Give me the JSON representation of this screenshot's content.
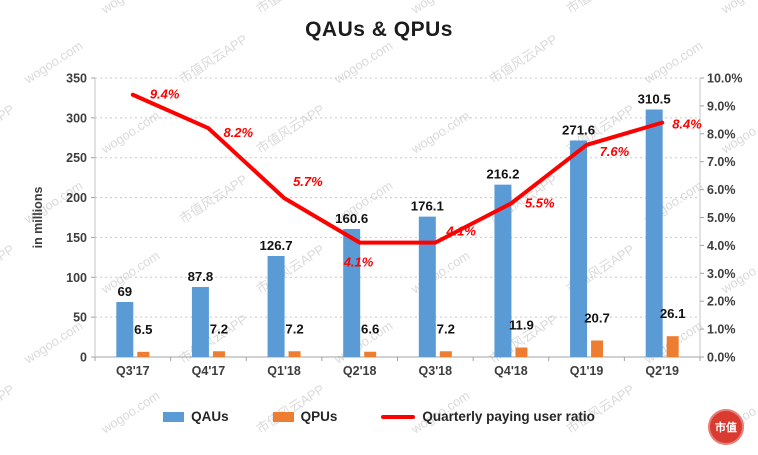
{
  "watermark": {
    "texts": [
      "市值风云APP",
      "wogoo.com"
    ]
  },
  "stamp": {
    "text": "市值"
  },
  "chart_data": {
    "type": "combo",
    "title": "QAUs & QPUs",
    "categories": [
      "Q3'17",
      "Q4'17",
      "Q1'18",
      "Q2'18",
      "Q3'18",
      "Q4'18",
      "Q1'19",
      "Q2'19"
    ],
    "series": [
      {
        "name": "QAUs",
        "type": "bar",
        "axis": "left",
        "color": "#5B9BD5",
        "values": [
          69,
          87.8,
          126.7,
          160.6,
          176.1,
          216.2,
          271.6,
          310.5
        ],
        "labels": [
          "69",
          "87.8",
          "126.7",
          "160.6",
          "176.1",
          "216.2",
          "271.6",
          "310.5"
        ]
      },
      {
        "name": "QPUs",
        "type": "bar",
        "axis": "left",
        "color": "#ED7D31",
        "values": [
          6.5,
          7.2,
          7.2,
          6.6,
          7.2,
          11.9,
          20.7,
          26.1
        ],
        "labels": [
          "6.5",
          "7.2",
          "7.2",
          "6.6",
          "7.2",
          "11.9",
          "20.7",
          "26.1"
        ]
      },
      {
        "name": "Quarterly paying user ratio",
        "type": "line",
        "axis": "right",
        "color": "#FF0000",
        "values": [
          9.4,
          8.2,
          5.7,
          4.1,
          4.1,
          5.5,
          7.6,
          8.4
        ],
        "labels": [
          "9.4%",
          "8.2%",
          "5.7%",
          "4.1%",
          "4.1%",
          "5.5%",
          "7.6%",
          "8.4%"
        ]
      }
    ],
    "left_axis": {
      "label": "in millions",
      "min": 0,
      "max": 350,
      "step": 50,
      "ticks": [
        "350",
        "300",
        "250",
        "200",
        "150",
        "100",
        "50",
        "0"
      ]
    },
    "right_axis": {
      "min": 0,
      "max": 10,
      "step": 1,
      "ticks": [
        "10.0%",
        "9.0%",
        "8.0%",
        "7.0%",
        "6.0%",
        "5.0%",
        "4.0%",
        "3.0%",
        "2.0%",
        "1.0%",
        "0.0%"
      ]
    },
    "grid": true,
    "legend_position": "bottom"
  }
}
